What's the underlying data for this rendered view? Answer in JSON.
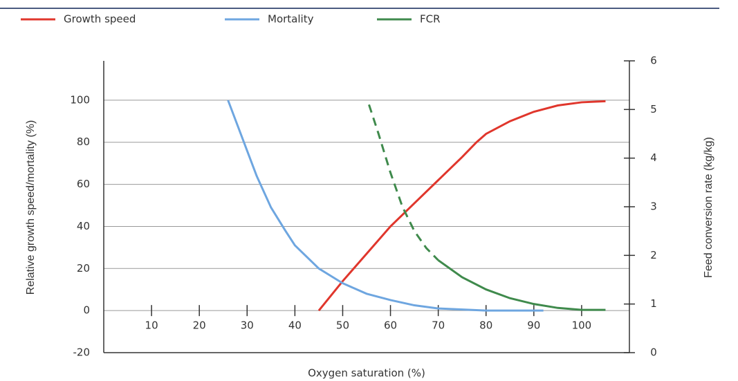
{
  "chart_data": {
    "type": "line",
    "xlabel": "Oxygen saturation (%)",
    "ylabel": "Relative growth speed/mortality (%)",
    "y2label": "Feed conversion rate (kg/kg)",
    "xlim": [
      0,
      110
    ],
    "xticks": [
      10,
      20,
      30,
      40,
      50,
      60,
      70,
      80,
      90,
      100
    ],
    "ylim": [
      -20,
      118.7
    ],
    "yticks": [
      -20,
      0,
      20,
      40,
      60,
      80,
      100
    ],
    "y2lim": [
      0,
      6
    ],
    "y2ticks": [
      0,
      1,
      2,
      3,
      4,
      5,
      6
    ],
    "grid": true,
    "legend": "top",
    "series": [
      {
        "name": "Growth speed",
        "color": "#e0362c",
        "x": [
          45,
          50,
          55,
          60,
          65,
          70,
          75,
          78,
          80,
          85,
          90,
          95,
          100,
          105
        ],
        "values": [
          0,
          14,
          27,
          40,
          51,
          62,
          73,
          80,
          84,
          90,
          94.5,
          97.5,
          99,
          99.5
        ]
      },
      {
        "name": "Mortality",
        "color": "#6ea6e0",
        "x": [
          26,
          28,
          30,
          32,
          35,
          38,
          40,
          45,
          50,
          55,
          60,
          65,
          70,
          80,
          92
        ],
        "values": [
          100,
          88,
          76,
          64,
          49,
          38,
          31,
          20,
          13,
          8,
          5,
          2.5,
          1,
          0,
          0
        ]
      },
      {
        "name": "FCR",
        "color": "#3f8a4c",
        "axis": "y2",
        "dashed_until": 70,
        "x": [
          55.5,
          57.5,
          60,
          62.5,
          65,
          67.5,
          70,
          75,
          80,
          85,
          90,
          95,
          100,
          105
        ],
        "values": [
          5.1,
          4.5,
          3.7,
          3.0,
          2.5,
          2.15,
          1.9,
          1.55,
          1.3,
          1.12,
          1.0,
          0.92,
          0.88,
          0.88
        ]
      }
    ]
  }
}
